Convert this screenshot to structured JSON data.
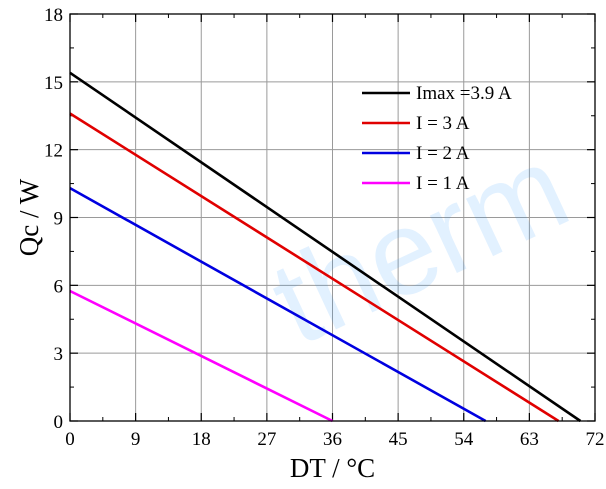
{
  "chart_data": {
    "type": "line",
    "xlabel": "DT / °C",
    "ylabel": "Qc / W",
    "xlim": [
      0,
      72
    ],
    "ylim": [
      0,
      18
    ],
    "xticks": [
      0,
      9,
      18,
      27,
      36,
      45,
      54,
      63,
      72
    ],
    "yticks": [
      0,
      3,
      6,
      9,
      12,
      15,
      18
    ],
    "grid": true,
    "legend_position": "top-right",
    "watermark": "therm",
    "series": [
      {
        "name": "Imax =3.9 A",
        "color": "#000000",
        "x": [
          0,
          70
        ],
        "y": [
          15.4,
          0
        ]
      },
      {
        "name": "I = 3 A",
        "color": "#e00000",
        "x": [
          0,
          67
        ],
        "y": [
          13.6,
          0
        ]
      },
      {
        "name": "I = 2 A",
        "color": "#0000e0",
        "x": [
          0,
          57
        ],
        "y": [
          10.3,
          0
        ]
      },
      {
        "name": "I = 1 A",
        "color": "#ff00ff",
        "x": [
          0,
          36
        ],
        "y": [
          5.75,
          0
        ]
      }
    ]
  }
}
